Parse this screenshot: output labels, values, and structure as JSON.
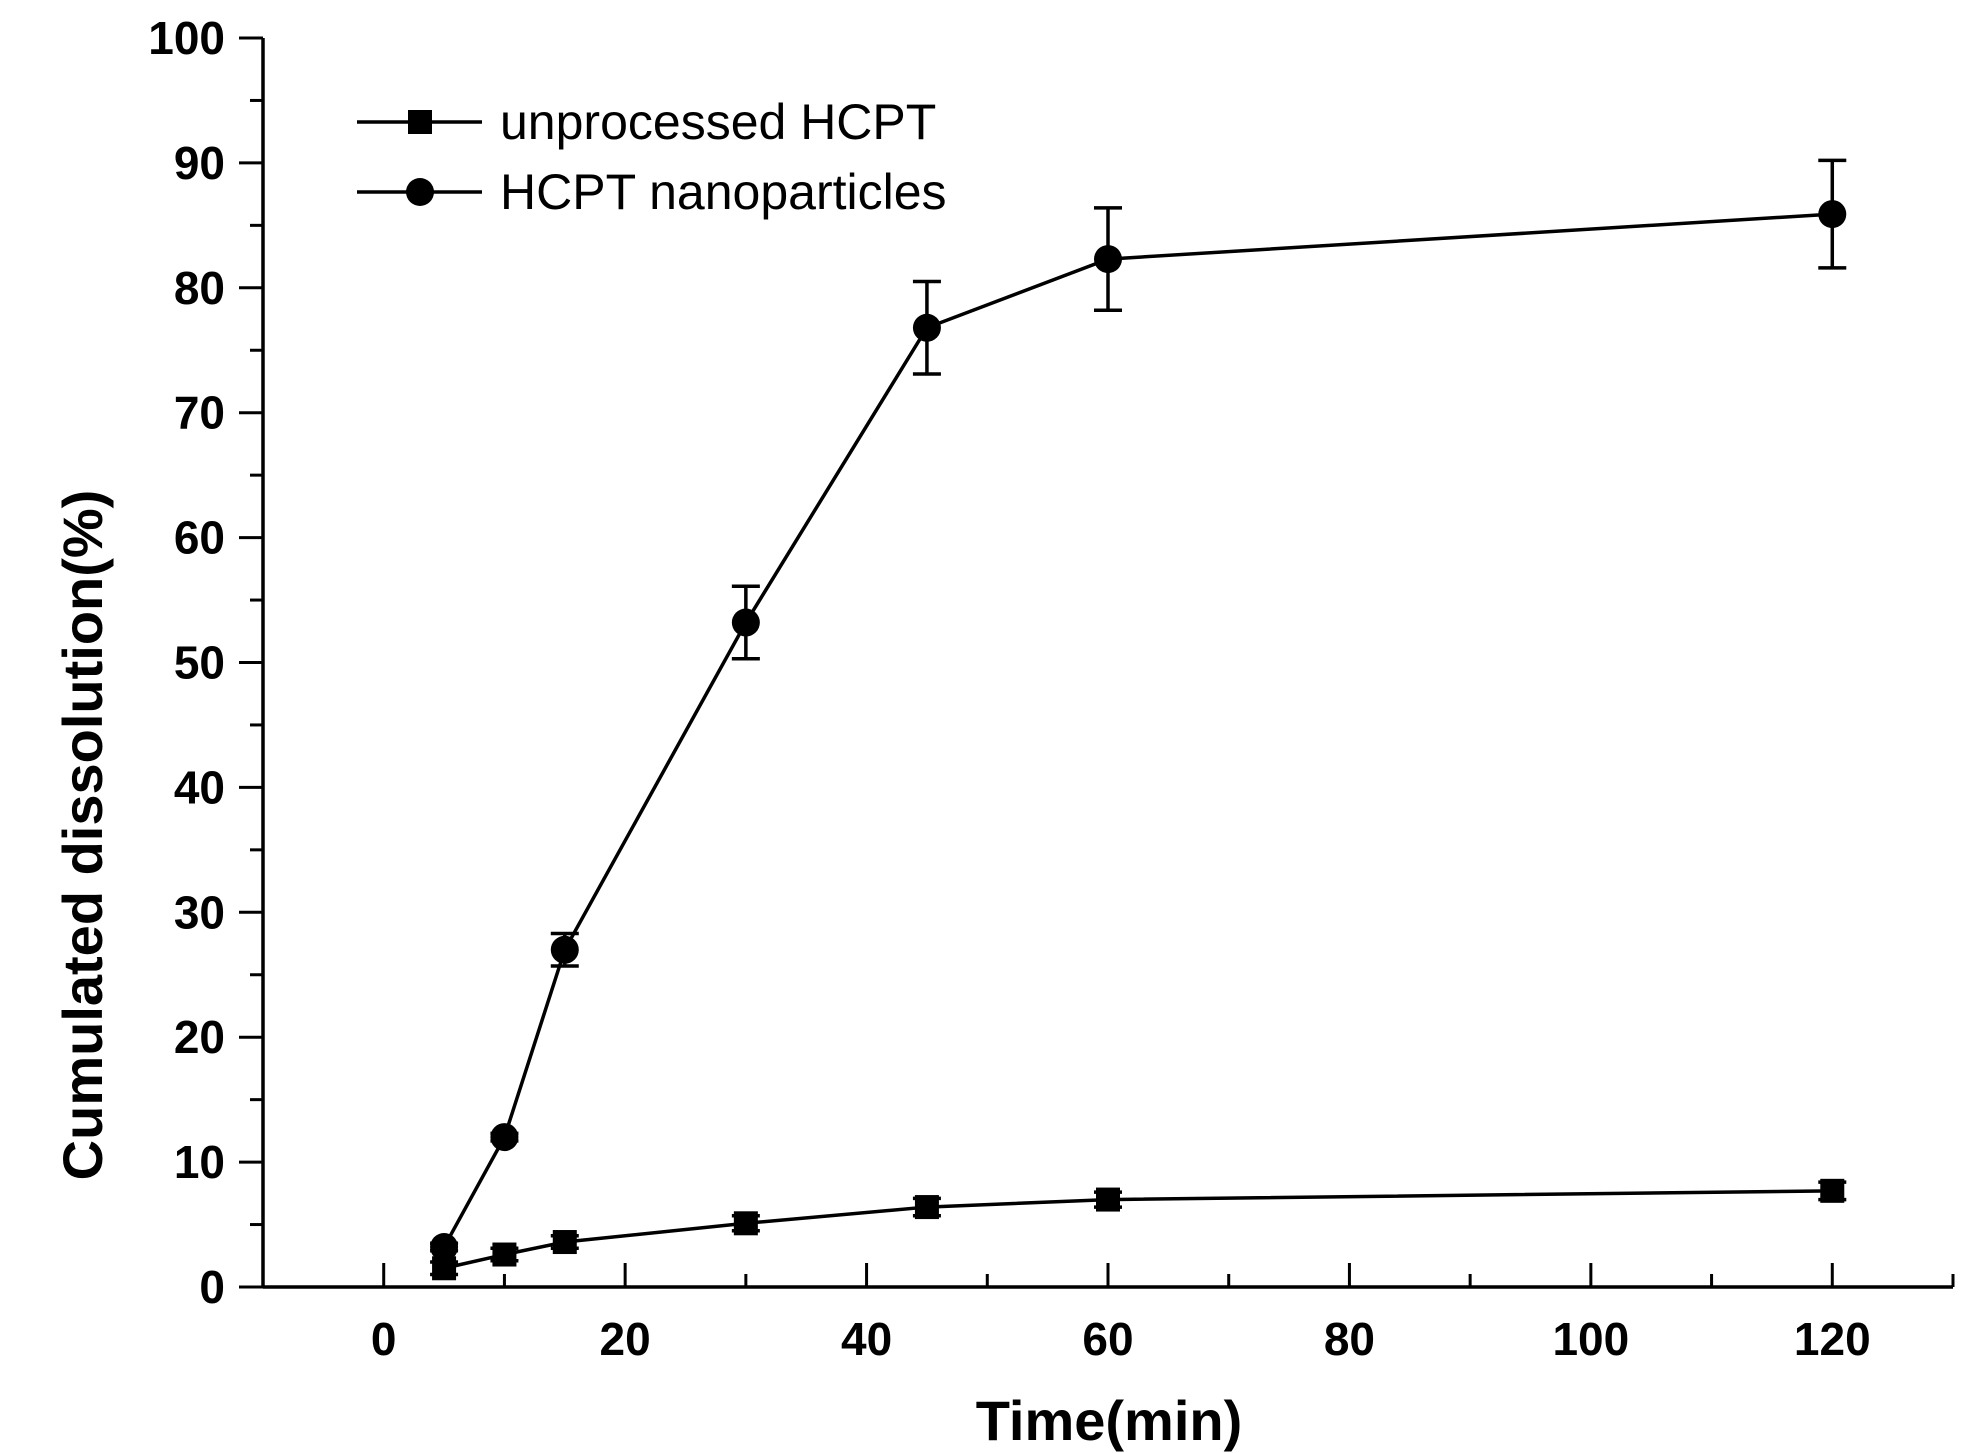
{
  "chart_data": {
    "type": "line",
    "xlabel": "Time(min)",
    "ylabel": "Cumulated dissolution(%)",
    "xlim": [
      -10,
      130
    ],
    "ylim": [
      0,
      100
    ],
    "xticks": [
      0,
      20,
      40,
      60,
      80,
      100,
      120
    ],
    "yticks": [
      0,
      10,
      20,
      30,
      40,
      50,
      60,
      70,
      80,
      90,
      100
    ],
    "grid": false,
    "legend_position": "top-left",
    "x": [
      5,
      10,
      15,
      30,
      45,
      60,
      120
    ],
    "series": [
      {
        "name": "unprocessed HCPT",
        "marker": "square",
        "color": "#000000",
        "values": [
          1.5,
          2.6,
          3.6,
          5.1,
          6.4,
          7.0,
          7.7
        ],
        "errors": [
          0.5,
          0.5,
          0.5,
          0.6,
          0.7,
          0.6,
          0.7
        ]
      },
      {
        "name": "HCPT nanoparticles",
        "marker": "circle",
        "color": "#000000",
        "values": [
          3.2,
          12.0,
          27.0,
          53.2,
          76.8,
          82.3,
          85.9
        ],
        "errors": [
          0.3,
          0.3,
          1.3,
          2.9,
          3.7,
          4.1,
          4.3
        ]
      }
    ]
  }
}
